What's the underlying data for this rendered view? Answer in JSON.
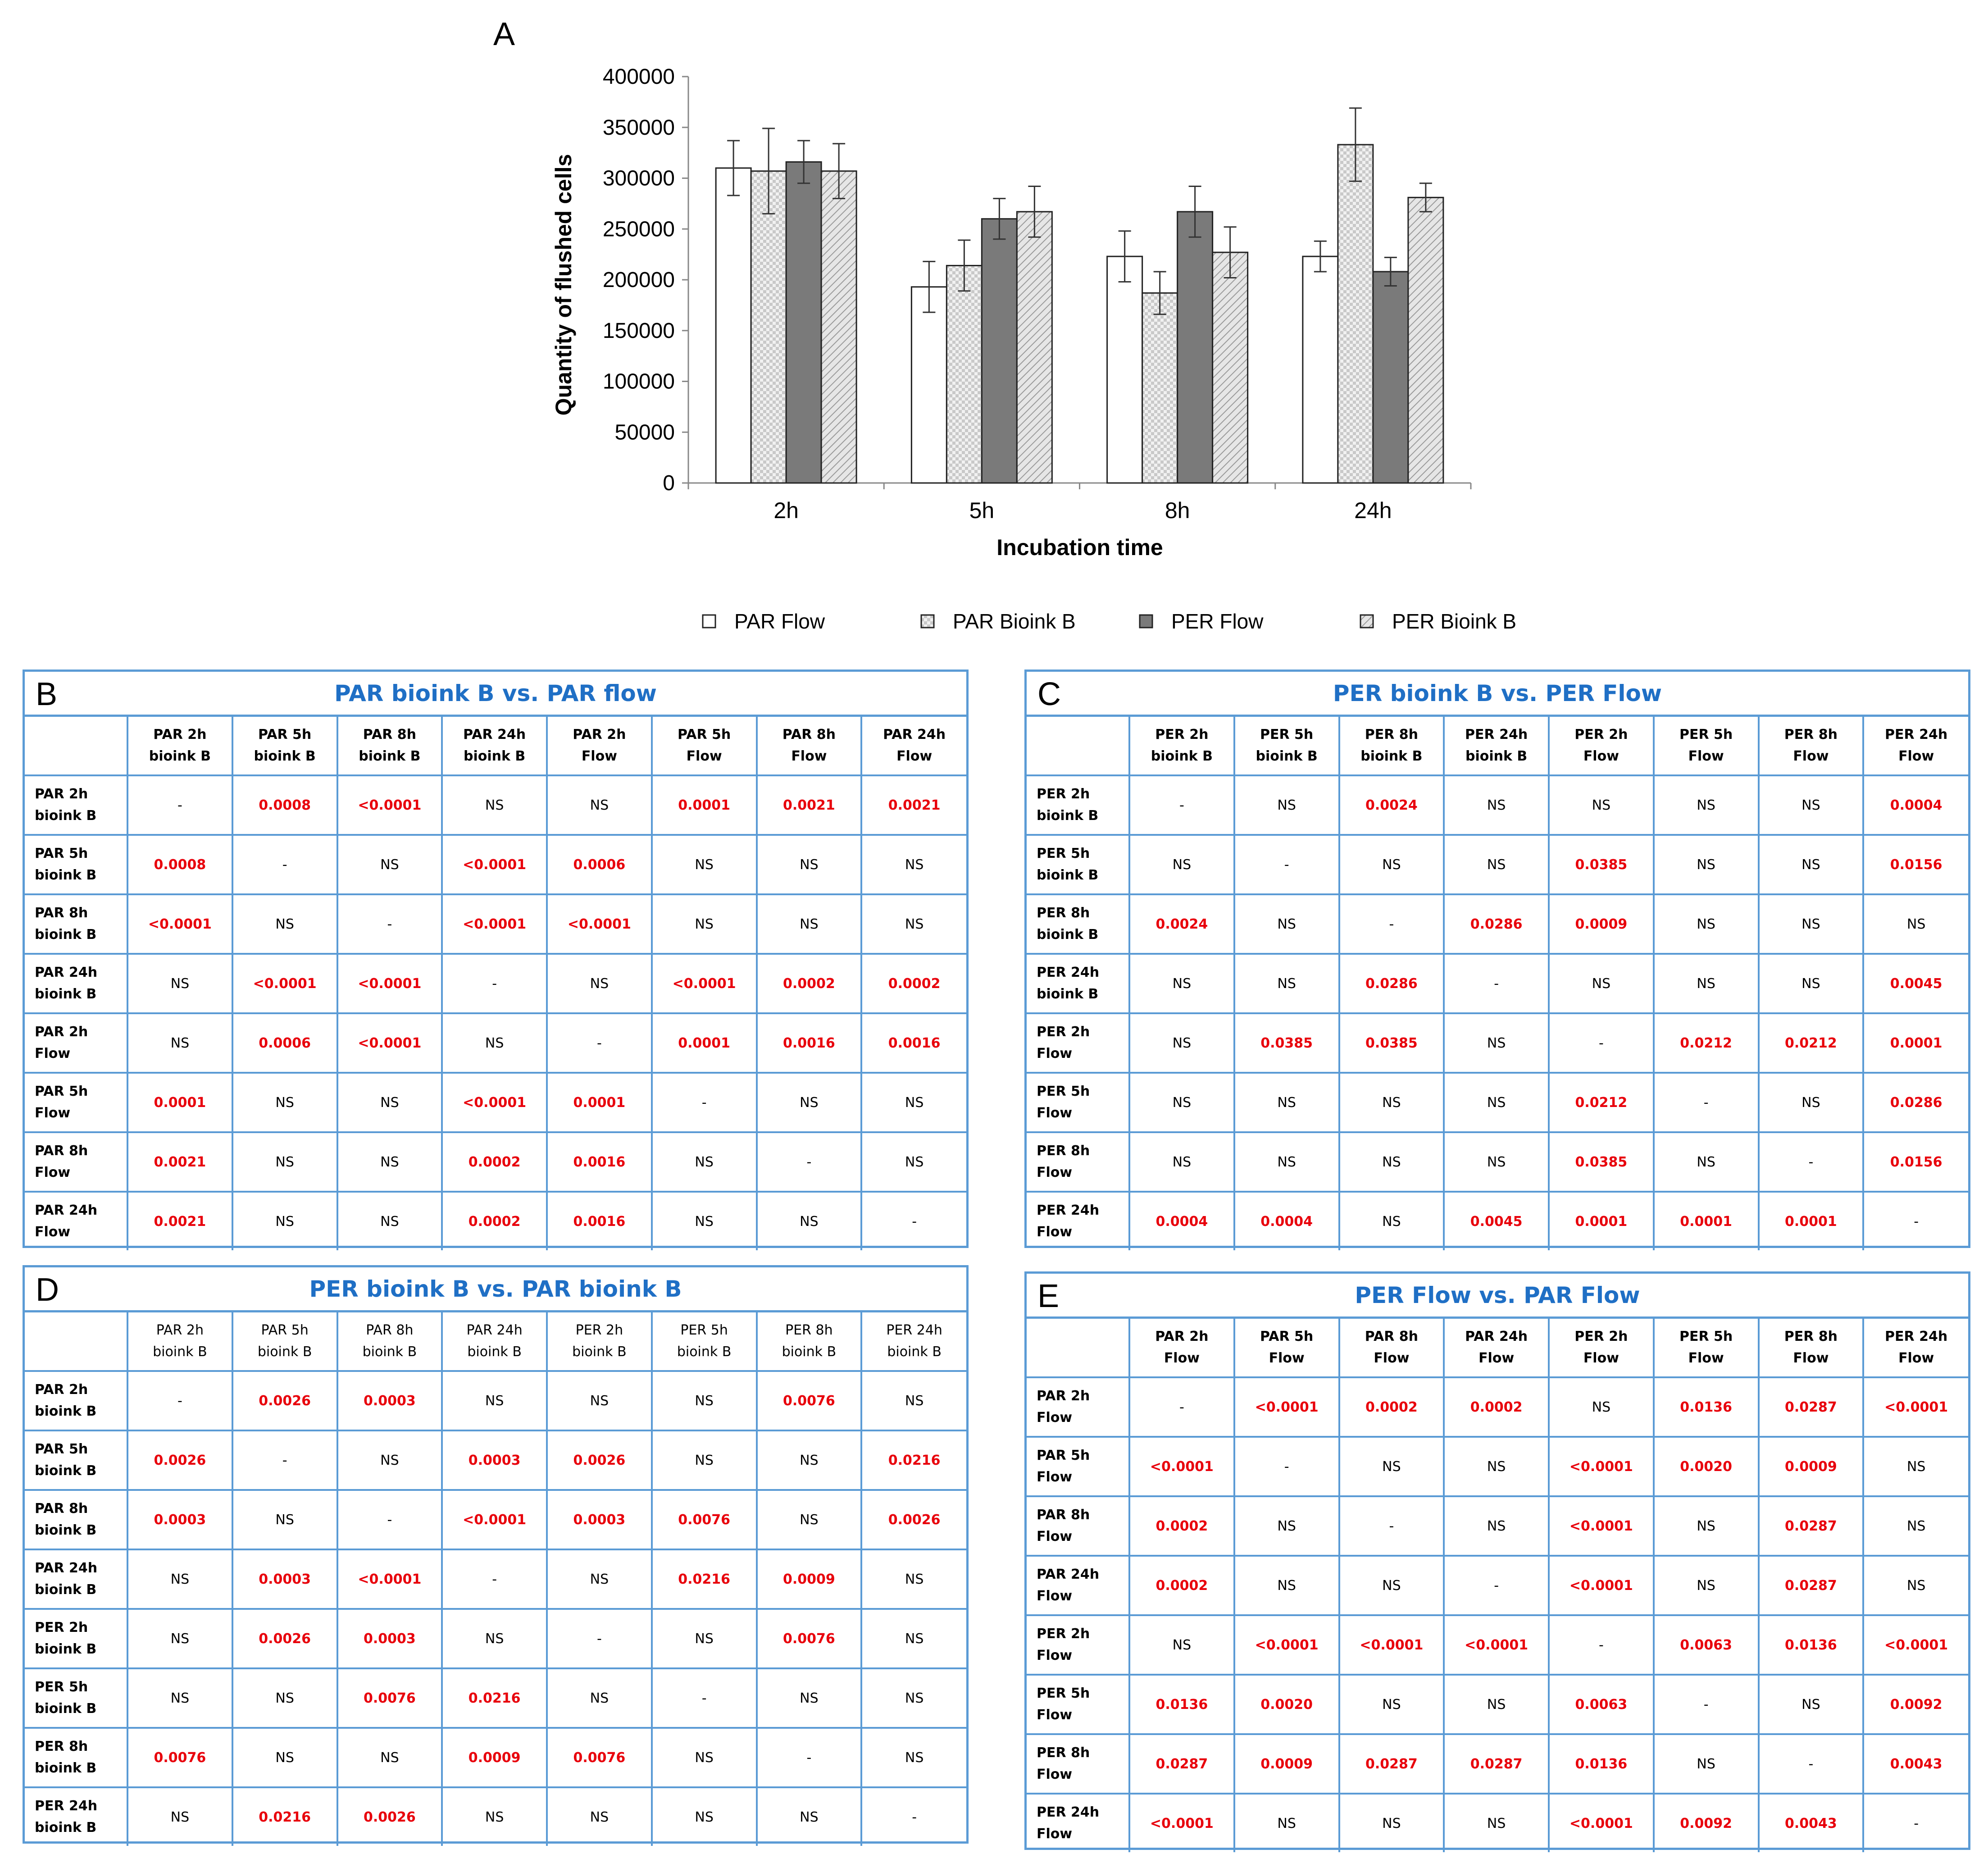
{
  "chart_data": {
    "type": "bar",
    "panel_label": "A",
    "title": "",
    "xlabel": "Incubation time",
    "ylabel": "Quantity of flushed cells",
    "ylim": [
      0,
      400000
    ],
    "yticks": [
      0,
      50000,
      100000,
      150000,
      200000,
      250000,
      300000,
      350000,
      400000
    ],
    "ytick_labels": [
      "0",
      "50000",
      "100000",
      "150000",
      "200000",
      "250000",
      "300000",
      "350000",
      "400000"
    ],
    "categories": [
      "2h",
      "5h",
      "8h",
      "24h"
    ],
    "grid": false,
    "legend_position": "bottom",
    "series": [
      {
        "name": "PAR Flow",
        "pattern": "white",
        "values": [
          310000,
          193000,
          223000,
          223000
        ],
        "errors": [
          27000,
          25000,
          25000,
          15000
        ]
      },
      {
        "name": "PAR Bioink B",
        "pattern": "dots",
        "values": [
          307000,
          214000,
          187000,
          333000
        ],
        "errors": [
          42000,
          25000,
          21000,
          36000
        ]
      },
      {
        "name": "PER Flow",
        "pattern": "solid-gray",
        "values": [
          316000,
          260000,
          267000,
          208000
        ],
        "errors": [
          21000,
          20000,
          25000,
          14000
        ]
      },
      {
        "name": "PER Bioink B",
        "pattern": "hatch",
        "values": [
          307000,
          267000,
          227000,
          281000
        ],
        "errors": [
          27000,
          25000,
          25000,
          14000
        ]
      }
    ]
  },
  "tables": {
    "B": {
      "letter": "B",
      "title": "PAR bioink B vs. PAR flow",
      "col_headers": [
        [
          "PAR 2h",
          "bioink B"
        ],
        [
          "PAR 5h",
          "bioink B"
        ],
        [
          "PAR 8h",
          "bioink B"
        ],
        [
          "PAR 24h",
          "bioink B"
        ],
        [
          "PAR 2h",
          "Flow"
        ],
        [
          "PAR 5h",
          "Flow"
        ],
        [
          "PAR 8h",
          "Flow"
        ],
        [
          "PAR 24h",
          "Flow"
        ]
      ],
      "header_bold": true,
      "rows": [
        {
          "label": [
            "PAR 2h",
            "bioink B"
          ],
          "cells": [
            "-",
            "0.0008",
            "<0.0001",
            "NS",
            "NS",
            "0.0001",
            "0.0021",
            "0.0021"
          ]
        },
        {
          "label": [
            "PAR 5h",
            "bioink B"
          ],
          "cells": [
            "0.0008",
            "-",
            "NS",
            "<0.0001",
            "0.0006",
            "NS",
            "NS",
            "NS"
          ]
        },
        {
          "label": [
            "PAR 8h",
            "bioink B"
          ],
          "cells": [
            "<0.0001",
            "NS",
            "-",
            "<0.0001",
            "<0.0001",
            "NS",
            "NS",
            "NS"
          ]
        },
        {
          "label": [
            "PAR 24h",
            "bioink B"
          ],
          "cells": [
            "NS",
            "<0.0001",
            "<0.0001",
            "-",
            "NS",
            "<0.0001",
            "0.0002",
            "0.0002"
          ]
        },
        {
          "label": [
            "PAR 2h",
            "Flow"
          ],
          "cells": [
            "NS",
            "0.0006",
            "<0.0001",
            "NS",
            "-",
            "0.0001",
            "0.0016",
            "0.0016"
          ]
        },
        {
          "label": [
            "PAR 5h",
            "Flow"
          ],
          "cells": [
            "0.0001",
            "NS",
            "NS",
            "<0.0001",
            "0.0001",
            "-",
            "NS",
            "NS"
          ]
        },
        {
          "label": [
            "PAR 8h",
            "Flow"
          ],
          "cells": [
            "0.0021",
            "NS",
            "NS",
            "0.0002",
            "0.0016",
            "NS",
            "-",
            "NS"
          ]
        },
        {
          "label": [
            "PAR 24h",
            "Flow"
          ],
          "cells": [
            "0.0021",
            "NS",
            "NS",
            "0.0002",
            "0.0016",
            "NS",
            "NS",
            "-"
          ]
        }
      ]
    },
    "C": {
      "letter": "C",
      "title": "PER bioink B vs. PER Flow",
      "col_headers": [
        [
          "PER 2h",
          "bioink B"
        ],
        [
          "PER 5h",
          "bioink B"
        ],
        [
          "PER 8h",
          "bioink B"
        ],
        [
          "PER 24h",
          "bioink B"
        ],
        [
          "PER 2h",
          "Flow"
        ],
        [
          "PER 5h",
          "Flow"
        ],
        [
          "PER 8h",
          "Flow"
        ],
        [
          "PER 24h",
          "Flow"
        ]
      ],
      "header_bold": true,
      "rows": [
        {
          "label": [
            "PER 2h",
            "bioink B"
          ],
          "cells": [
            "-",
            "NS",
            "0.0024",
            "NS",
            "NS",
            "NS",
            "NS",
            "0.0004"
          ]
        },
        {
          "label": [
            "PER 5h",
            "bioink B"
          ],
          "cells": [
            "NS",
            "-",
            "NS",
            "NS",
            "0.0385",
            "NS",
            "NS",
            "0.0156"
          ]
        },
        {
          "label": [
            "PER 8h",
            "bioink B"
          ],
          "cells": [
            "0.0024",
            "NS",
            "-",
            "0.0286",
            "0.0009",
            "NS",
            "NS",
            "NS"
          ]
        },
        {
          "label": [
            "PER 24h",
            "bioink B"
          ],
          "cells": [
            "NS",
            "NS",
            "0.0286",
            "-",
            "NS",
            "NS",
            "NS",
            "0.0045"
          ]
        },
        {
          "label": [
            "PER 2h",
            "Flow"
          ],
          "cells": [
            "NS",
            "0.0385",
            "0.0385",
            "NS",
            "-",
            "0.0212",
            "0.0212",
            "0.0001"
          ]
        },
        {
          "label": [
            "PER 5h",
            "Flow"
          ],
          "cells": [
            "NS",
            "NS",
            "NS",
            "NS",
            "0.0212",
            "-",
            "NS",
            "0.0286"
          ]
        },
        {
          "label": [
            "PER 8h",
            "Flow"
          ],
          "cells": [
            "NS",
            "NS",
            "NS",
            "NS",
            "0.0385",
            "NS",
            "-",
            "0.0156"
          ]
        },
        {
          "label": [
            "PER 24h",
            "Flow"
          ],
          "cells": [
            "0.0004",
            "0.0004",
            "NS",
            "0.0045",
            "0.0001",
            "0.0001",
            "0.0001",
            "-"
          ]
        }
      ]
    },
    "D": {
      "letter": "D",
      "title": "PER bioink B vs. PAR bioink B",
      "col_headers": [
        [
          "PAR 2h",
          "bioink B"
        ],
        [
          "PAR 5h",
          "bioink B"
        ],
        [
          "PAR 8h",
          "bioink B"
        ],
        [
          "PAR 24h",
          "bioink B"
        ],
        [
          "PER 2h",
          "bioink B"
        ],
        [
          "PER 5h",
          "bioink B"
        ],
        [
          "PER 8h",
          "bioink B"
        ],
        [
          "PER 24h",
          "bioink B"
        ]
      ],
      "header_bold": false,
      "rows": [
        {
          "label": [
            "PAR 2h",
            "bioink B"
          ],
          "cells": [
            "-",
            "0.0026",
            "0.0003",
            "NS",
            "NS",
            "NS",
            "0.0076",
            "NS"
          ]
        },
        {
          "label": [
            "PAR 5h",
            "bioink B"
          ],
          "cells": [
            "0.0026",
            "-",
            "NS",
            "0.0003",
            "0.0026",
            "NS",
            "NS",
            "0.0216"
          ]
        },
        {
          "label": [
            "PAR 8h",
            "bioink B"
          ],
          "cells": [
            "0.0003",
            "NS",
            "-",
            "<0.0001",
            "0.0003",
            "0.0076",
            "NS",
            "0.0026"
          ]
        },
        {
          "label": [
            "PAR 24h",
            "bioink B"
          ],
          "cells": [
            "NS",
            "0.0003",
            "<0.0001",
            "-",
            "NS",
            "0.0216",
            "0.0009",
            "NS"
          ]
        },
        {
          "label": [
            "PER 2h",
            "bioink B"
          ],
          "cells": [
            "NS",
            "0.0026",
            "0.0003",
            "NS",
            "-",
            "NS",
            "0.0076",
            "NS"
          ]
        },
        {
          "label": [
            "PER 5h",
            "bioink B"
          ],
          "cells": [
            "NS",
            "NS",
            "0.0076",
            "0.0216",
            "NS",
            "-",
            "NS",
            "NS"
          ]
        },
        {
          "label": [
            "PER 8h",
            "bioink B"
          ],
          "cells": [
            "0.0076",
            "NS",
            "NS",
            "0.0009",
            "0.0076",
            "NS",
            "-",
            "NS"
          ]
        },
        {
          "label": [
            "PER 24h",
            "bioink B"
          ],
          "cells": [
            "NS",
            "0.0216",
            "0.0026",
            "NS",
            "NS",
            "NS",
            "NS",
            "-"
          ]
        }
      ]
    },
    "E": {
      "letter": "E",
      "title": "PER Flow vs. PAR Flow",
      "col_headers": [
        [
          "PAR 2h",
          "Flow"
        ],
        [
          "PAR 5h",
          "Flow"
        ],
        [
          "PAR 8h",
          "Flow"
        ],
        [
          "PAR 24h",
          "Flow"
        ],
        [
          "PER 2h",
          "Flow"
        ],
        [
          "PER 5h",
          "Flow"
        ],
        [
          "PER 8h",
          "Flow"
        ],
        [
          "PER 24h",
          "Flow"
        ]
      ],
      "header_bold": true,
      "rows": [
        {
          "label": [
            "PAR 2h",
            "Flow"
          ],
          "cells": [
            "-",
            "<0.0001",
            "0.0002",
            "0.0002",
            "NS",
            "0.0136",
            "0.0287",
            "<0.0001"
          ]
        },
        {
          "label": [
            "PAR 5h",
            "Flow"
          ],
          "cells": [
            "<0.0001",
            "-",
            "NS",
            "NS",
            "<0.0001",
            "0.0020",
            "0.0009",
            "NS"
          ]
        },
        {
          "label": [
            "PAR 8h",
            "Flow"
          ],
          "cells": [
            "0.0002",
            "NS",
            "-",
            "NS",
            "<0.0001",
            "NS",
            "0.0287",
            "NS"
          ]
        },
        {
          "label": [
            "PAR 24h",
            "Flow"
          ],
          "cells": [
            "0.0002",
            "NS",
            "NS",
            "-",
            "<0.0001",
            "NS",
            "0.0287",
            "NS"
          ]
        },
        {
          "label": [
            "PER 2h",
            "Flow"
          ],
          "cells": [
            "NS",
            "<0.0001",
            "<0.0001",
            "<0.0001",
            "-",
            "0.0063",
            "0.0136",
            "<0.0001"
          ]
        },
        {
          "label": [
            "PER 5h",
            "Flow"
          ],
          "cells": [
            "0.0136",
            "0.0020",
            "NS",
            "NS",
            "0.0063",
            "-",
            "NS",
            "0.0092"
          ]
        },
        {
          "label": [
            "PER 8h",
            "Flow"
          ],
          "cells": [
            "0.0287",
            "0.0009",
            "0.0287",
            "0.0287",
            "0.0136",
            "NS",
            "-",
            "0.0043"
          ]
        },
        {
          "label": [
            "PER 24h",
            "Flow"
          ],
          "cells": [
            "<0.0001",
            "NS",
            "NS",
            "NS",
            "<0.0001",
            "0.0092",
            "0.0043",
            "-"
          ]
        }
      ]
    }
  }
}
